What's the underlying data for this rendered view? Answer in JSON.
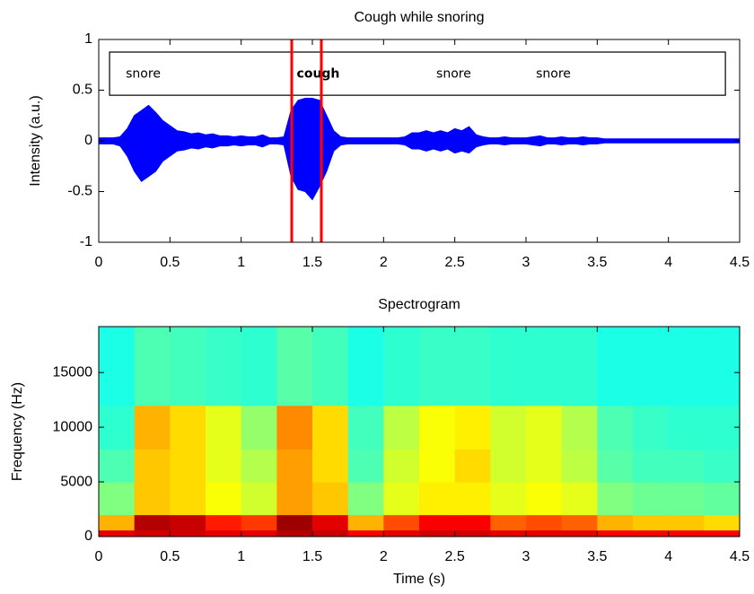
{
  "chart_data": [
    {
      "type": "area",
      "title": "Cough while snoring",
      "ylabel": "Intensity (a.u.)",
      "xlim": [
        0,
        4.5
      ],
      "ylim": [
        -1,
        1
      ],
      "xticks": [
        0,
        0.5,
        1,
        1.5,
        2,
        2.5,
        3,
        3.5,
        4,
        4.5
      ],
      "yticks": [
        -1,
        -0.5,
        0,
        0.5,
        1
      ],
      "x": [
        0,
        0.05,
        0.1,
        0.15,
        0.2,
        0.25,
        0.3,
        0.35,
        0.4,
        0.45,
        0.5,
        0.55,
        0.6,
        0.65,
        0.7,
        0.75,
        0.8,
        0.85,
        0.9,
        0.95,
        1,
        1.05,
        1.1,
        1.15,
        1.2,
        1.25,
        1.3,
        1.35,
        1.4,
        1.45,
        1.5,
        1.55,
        1.6,
        1.65,
        1.7,
        1.75,
        1.8,
        1.85,
        1.9,
        1.95,
        2,
        2.05,
        2.1,
        2.15,
        2.2,
        2.25,
        2.3,
        2.35,
        2.4,
        2.45,
        2.5,
        2.55,
        2.6,
        2.65,
        2.7,
        2.75,
        2.8,
        2.85,
        2.9,
        2.95,
        3,
        3.05,
        3.1,
        3.15,
        3.2,
        3.25,
        3.3,
        3.35,
        3.4,
        3.45,
        3.5,
        3.55,
        3.6,
        3.65,
        3.7,
        3.75,
        3.8,
        3.85,
        3.9,
        3.95,
        4,
        4.05,
        4.1,
        4.15,
        4.2,
        4.25,
        4.3,
        4.35,
        4.4,
        4.45,
        4.5
      ],
      "series": [
        {
          "color": "#0000ff",
          "values": [
            0.03,
            0.03,
            0.03,
            0.04,
            0.12,
            0.25,
            0.3,
            0.35,
            0.28,
            0.2,
            0.15,
            0.1,
            0.09,
            0.07,
            0.08,
            0.06,
            0.07,
            0.05,
            0.05,
            0.04,
            0.05,
            0.04,
            0.04,
            0.06,
            0.03,
            0.03,
            0.04,
            0.3,
            0.4,
            0.42,
            0.42,
            0.4,
            0.25,
            0.1,
            0.04,
            0.03,
            0.03,
            0.03,
            0.03,
            0.03,
            0.03,
            0.03,
            0.03,
            0.04,
            0.08,
            0.08,
            0.1,
            0.08,
            0.1,
            0.08,
            0.12,
            0.1,
            0.14,
            0.06,
            0.04,
            0.03,
            0.03,
            0.04,
            0.03,
            0.03,
            0.03,
            0.04,
            0.05,
            0.03,
            0.03,
            0.04,
            0.03,
            0.03,
            0.04,
            0.03,
            0.03,
            0.02,
            0.02,
            0.02,
            0.02,
            0.02,
            0.02,
            0.02,
            0.02,
            0.02,
            0.02,
            0.02,
            0.02,
            0.02,
            0.02,
            0.02,
            0.02,
            0.02,
            0.02,
            0.02,
            0.02
          ]
        },
        {
          "color": "#0000ff",
          "values": [
            -0.03,
            -0.03,
            -0.03,
            -0.05,
            -0.15,
            -0.3,
            -0.4,
            -0.35,
            -0.3,
            -0.2,
            -0.15,
            -0.1,
            -0.09,
            -0.07,
            -0.08,
            -0.06,
            -0.07,
            -0.05,
            -0.05,
            -0.04,
            -0.05,
            -0.04,
            -0.04,
            -0.06,
            -0.03,
            -0.03,
            -0.04,
            -0.35,
            -0.48,
            -0.5,
            -0.58,
            -0.45,
            -0.3,
            -0.1,
            -0.04,
            -0.03,
            -0.03,
            -0.03,
            -0.03,
            -0.03,
            -0.03,
            -0.03,
            -0.03,
            -0.04,
            -0.08,
            -0.08,
            -0.1,
            -0.08,
            -0.1,
            -0.08,
            -0.12,
            -0.1,
            -0.12,
            -0.06,
            -0.04,
            -0.03,
            -0.03,
            -0.04,
            -0.03,
            -0.03,
            -0.03,
            -0.04,
            -0.05,
            -0.03,
            -0.03,
            -0.04,
            -0.03,
            -0.03,
            -0.04,
            -0.03,
            -0.03,
            -0.02,
            -0.02,
            -0.02,
            -0.02,
            -0.02,
            -0.02,
            -0.02,
            -0.02,
            -0.02,
            -0.02,
            -0.02,
            -0.02,
            -0.02,
            -0.02,
            -0.02,
            -0.02,
            -0.02,
            -0.02,
            -0.02,
            -0.02
          ]
        }
      ],
      "box": {
        "x": [
          0.076,
          4.4
        ],
        "y": [
          0.45,
          0.876
        ]
      },
      "annotations": [
        {
          "text": "snore",
          "x": 0.19,
          "y": 0.66,
          "bold": false
        },
        {
          "text": "cough",
          "x": 1.39,
          "y": 0.66,
          "bold": true
        },
        {
          "text": "snore",
          "x": 2.37,
          "y": 0.66,
          "bold": false
        },
        {
          "text": "snore",
          "x": 3.07,
          "y": 0.66,
          "bold": false
        }
      ],
      "markers": {
        "x": [
          1.355,
          1.563
        ],
        "color": "#ff0000"
      }
    },
    {
      "type": "heatmap",
      "title": "Spectrogram",
      "xlabel": "Time (s)",
      "ylabel": "Frequency (Hz)",
      "xlim": [
        0,
        4.5
      ],
      "ylim": [
        0,
        19200
      ],
      "xticks": [
        0,
        0.5,
        1,
        1.5,
        2,
        2.5,
        3,
        3.5,
        4,
        4.5
      ],
      "yticks": [
        0,
        5000,
        10000,
        15000
      ],
      "x": [
        0,
        0.25,
        0.5,
        0.75,
        1,
        1.25,
        1.5,
        1.75,
        2,
        2.25,
        2.5,
        2.75,
        3,
        3.25,
        3.5,
        3.75,
        4,
        4.25,
        4.5
      ],
      "y": [
        0,
        600,
        2000,
        5000,
        8000,
        12000,
        19200
      ],
      "values": [
        [
          0.9,
          0.92,
          0.92,
          0.9,
          0.9,
          0.95,
          0.93,
          0.88,
          0.9,
          0.92,
          0.92,
          0.9,
          0.9,
          0.9,
          0.88,
          0.88,
          0.88,
          0.88
        ],
        [
          0.7,
          0.95,
          0.93,
          0.85,
          0.82,
          0.97,
          0.9,
          0.7,
          0.8,
          0.88,
          0.88,
          0.78,
          0.8,
          0.78,
          0.7,
          0.68,
          0.68,
          0.66
        ],
        [
          0.5,
          0.68,
          0.66,
          0.62,
          0.58,
          0.72,
          0.68,
          0.5,
          0.6,
          0.64,
          0.64,
          0.6,
          0.62,
          0.6,
          0.5,
          0.48,
          0.48,
          0.47
        ],
        [
          0.45,
          0.68,
          0.66,
          0.6,
          0.55,
          0.72,
          0.66,
          0.45,
          0.58,
          0.62,
          0.66,
          0.58,
          0.6,
          0.56,
          0.46,
          0.44,
          0.44,
          0.43
        ],
        [
          0.42,
          0.7,
          0.66,
          0.6,
          0.52,
          0.74,
          0.66,
          0.44,
          0.56,
          0.62,
          0.64,
          0.58,
          0.6,
          0.55,
          0.45,
          0.43,
          0.42,
          0.42
        ],
        [
          0.4,
          0.45,
          0.44,
          0.43,
          0.42,
          0.46,
          0.44,
          0.4,
          0.42,
          0.43,
          0.43,
          0.42,
          0.42,
          0.42,
          0.4,
          0.4,
          0.4,
          0.4
        ]
      ],
      "colormap": "jet"
    }
  ]
}
